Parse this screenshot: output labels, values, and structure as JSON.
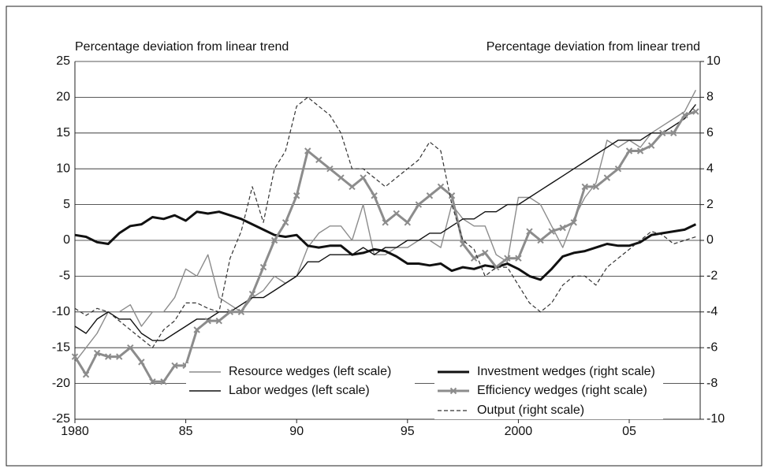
{
  "chart_data": {
    "type": "line",
    "left_axis_label": "Percentage deviation from linear trend",
    "right_axis_label": "Percentage deviation from linear trend",
    "x": [
      1980,
      1980.5,
      1981,
      1981.5,
      1982,
      1982.5,
      1983,
      1983.5,
      1984,
      1984.5,
      1985,
      1985.5,
      1986,
      1986.5,
      1987,
      1987.5,
      1988,
      1988.5,
      1989,
      1989.5,
      1990,
      1990.5,
      1991,
      1991.5,
      1992,
      1992.5,
      1993,
      1993.5,
      1994,
      1994.5,
      1995,
      1995.5,
      1996,
      1996.5,
      1997,
      1997.5,
      1998,
      1998.5,
      1999,
      1999.5,
      2000,
      2000.5,
      2001,
      2001.5,
      2002,
      2002.5,
      2003,
      2003.5,
      2004,
      2004.5,
      2005,
      2005.5,
      2006,
      2006.5,
      2007,
      2007.5,
      2008
    ],
    "xlim": [
      1980,
      2008.2
    ],
    "xticks": [
      {
        "value": 1980,
        "label": "1980"
      },
      {
        "value": 1985,
        "label": "85"
      },
      {
        "value": 1990,
        "label": "90"
      },
      {
        "value": 1995,
        "label": "95"
      },
      {
        "value": 2000,
        "label": "2000"
      },
      {
        "value": 2005,
        "label": "05"
      }
    ],
    "ylim": [
      -25,
      25
    ],
    "yticks": [
      -25,
      -20,
      -15,
      -10,
      -5,
      0,
      5,
      10,
      15,
      20,
      25
    ],
    "y2lim": [
      -10,
      10
    ],
    "y2ticks": [
      -10,
      -8,
      -6,
      -4,
      -2,
      0,
      2,
      4,
      6,
      8,
      10
    ],
    "grid": true,
    "series": [
      {
        "name": "Resource wedges (left scale)",
        "color": "#8c8c8c",
        "width": 1.4,
        "axis": "y",
        "values": [
          -17,
          -15,
          -13,
          -10,
          -10,
          -9,
          -12,
          -10,
          -10,
          -8,
          -4,
          -5,
          -2,
          -8,
          -9,
          -10,
          -8,
          -7,
          -5,
          -6,
          -5,
          -1,
          1,
          2,
          2,
          0,
          5,
          -2,
          -2,
          -1,
          -1,
          0,
          0,
          -1,
          5,
          3,
          2,
          2,
          -2,
          -3,
          6,
          6,
          5,
          2,
          -1,
          3,
          6,
          8,
          14,
          13,
          14,
          13,
          15,
          16,
          17,
          18,
          21
        ]
      },
      {
        "name": "Investment wedges (right scale)",
        "color": "#111111",
        "width": 3,
        "axis": "y2",
        "values": [
          0.3,
          0.2,
          -0.1,
          -0.2,
          0.4,
          0.8,
          0.9,
          1.3,
          1.2,
          1.4,
          1.1,
          1.6,
          1.5,
          1.6,
          1.4,
          1.2,
          0.9,
          0.6,
          0.3,
          0.2,
          0.3,
          -0.3,
          -0.4,
          -0.3,
          -0.3,
          -0.8,
          -0.7,
          -0.5,
          -0.6,
          -0.9,
          -1.3,
          -1.3,
          -1.4,
          -1.3,
          -1.7,
          -1.5,
          -1.6,
          -1.4,
          -1.5,
          -1.3,
          -1.6,
          -2.0,
          -2.2,
          -1.6,
          -0.9,
          -0.7,
          -0.6,
          -0.4,
          -0.2,
          -0.3,
          -0.3,
          -0.1,
          0.3,
          0.4,
          0.5,
          0.6,
          0.9
        ]
      },
      {
        "name": "Labor wedges (left scale)",
        "color": "#111111",
        "width": 1.4,
        "axis": "y",
        "values": [
          -12,
          -13,
          -11,
          -10,
          -11,
          -11,
          -13,
          -14,
          -14,
          -13,
          -12,
          -11,
          -11,
          -10,
          -10,
          -9,
          -8,
          -8,
          -7,
          -6,
          -5,
          -3,
          -3,
          -2,
          -2,
          -2,
          -1,
          -2,
          -1,
          -1,
          0,
          0,
          1,
          1,
          2,
          3,
          3,
          4,
          4,
          5,
          5,
          6,
          7,
          8,
          9,
          10,
          11,
          12,
          13,
          14,
          14,
          14,
          15,
          15,
          16,
          17,
          19
        ]
      },
      {
        "name": "Efficiency wedges (right scale)",
        "color": "#8c8c8c",
        "width": 3,
        "axis": "y2",
        "marker": "x",
        "values": [
          -6.5,
          -7.5,
          -6.3,
          -6.5,
          -6.5,
          -6.0,
          -6.8,
          -7.9,
          -7.9,
          -7.0,
          -7.0,
          -5.0,
          -4.5,
          -4.5,
          -4.0,
          -4.0,
          -3.0,
          -1.5,
          0,
          1.0,
          2.5,
          5.0,
          4.5,
          4.0,
          3.5,
          3.0,
          3.5,
          2.5,
          1.0,
          1.5,
          1.0,
          2.0,
          2.5,
          3.0,
          2.5,
          -0.2,
          -1.0,
          -0.7,
          -1.5,
          -1.0,
          -1.0,
          0.5,
          0,
          0.5,
          0.7,
          1.0,
          3.0,
          3.0,
          3.5,
          4.0,
          5.0,
          5.0,
          5.3,
          6.0,
          6.0,
          7.0,
          7.2
        ]
      },
      {
        "name": "Output (right scale)",
        "color": "#333333",
        "width": 1.2,
        "axis": "y2",
        "style": "dashed",
        "values": [
          -3.8,
          -4.2,
          -3.8,
          -4.0,
          -4.5,
          -5.0,
          -5.5,
          -6.0,
          -5.0,
          -4.5,
          -3.5,
          -3.5,
          -3.8,
          -4.0,
          -1.0,
          0.5,
          3.0,
          1.0,
          4.0,
          5.0,
          7.5,
          8.0,
          7.5,
          7.0,
          6.0,
          4.0,
          4.0,
          3.5,
          3.0,
          3.5,
          4.0,
          4.5,
          5.5,
          5.0,
          2.0,
          0,
          -0.5,
          -2.0,
          -1.5,
          -1.5,
          -2.5,
          -3.5,
          -4.0,
          -3.5,
          -2.5,
          -2.0,
          -2.0,
          -2.5,
          -1.5,
          -1.0,
          -0.5,
          0,
          0.5,
          0.3,
          -0.2,
          0,
          0.2
        ]
      }
    ]
  }
}
